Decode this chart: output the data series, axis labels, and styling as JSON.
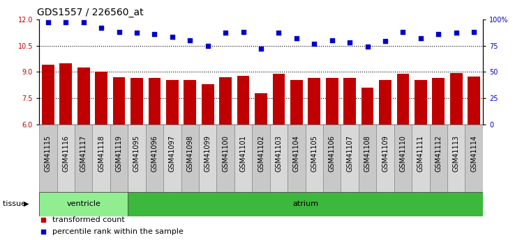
{
  "title": "GDS1557 / 226560_at",
  "categories": [
    "GSM41115",
    "GSM41116",
    "GSM41117",
    "GSM41118",
    "GSM41119",
    "GSM41095",
    "GSM41096",
    "GSM41097",
    "GSM41098",
    "GSM41099",
    "GSM41100",
    "GSM41101",
    "GSM41102",
    "GSM41103",
    "GSM41104",
    "GSM41105",
    "GSM41106",
    "GSM41107",
    "GSM41108",
    "GSM41109",
    "GSM41110",
    "GSM41111",
    "GSM41112",
    "GSM41113",
    "GSM41114"
  ],
  "bar_values": [
    9.4,
    9.5,
    9.25,
    9.0,
    8.7,
    8.65,
    8.65,
    8.55,
    8.55,
    8.3,
    8.7,
    8.8,
    7.8,
    8.9,
    8.55,
    8.65,
    8.65,
    8.65,
    8.1,
    8.55,
    8.9,
    8.55,
    8.65,
    8.95,
    8.75
  ],
  "dot_values": [
    97,
    97,
    97,
    92,
    88,
    87,
    86,
    83,
    80,
    75,
    87,
    88,
    72,
    87,
    82,
    77,
    80,
    78,
    74,
    79,
    88,
    82,
    86,
    87,
    88
  ],
  "bar_color": "#C00000",
  "dot_color": "#0000CC",
  "ylim_left": [
    6,
    12
  ],
  "ylim_right": [
    0,
    100
  ],
  "yticks_left": [
    6,
    7.5,
    9,
    10.5,
    12
  ],
  "yticks_right": [
    0,
    25,
    50,
    75,
    100
  ],
  "ytick_labels_right": [
    "0",
    "25",
    "50",
    "75",
    "100%"
  ],
  "hlines": [
    7.5,
    9.0,
    10.5
  ],
  "ventricle_count": 5,
  "tissue_label": "tissue",
  "group1_label": "ventricle",
  "group2_label": "atrium",
  "legend_bar_label": "transformed count",
  "legend_dot_label": "percentile rank within the sample",
  "bg_color_fig": "#ffffff",
  "ventricle_color": "#90EE90",
  "atrium_color": "#3CB83C",
  "title_fontsize": 10,
  "tick_fontsize": 7,
  "label_fontsize": 8,
  "xticklabel_bg_even": "#c8c8c8",
  "xticklabel_bg_odd": "#d8d8d8",
  "plot_bg": "#ffffff"
}
